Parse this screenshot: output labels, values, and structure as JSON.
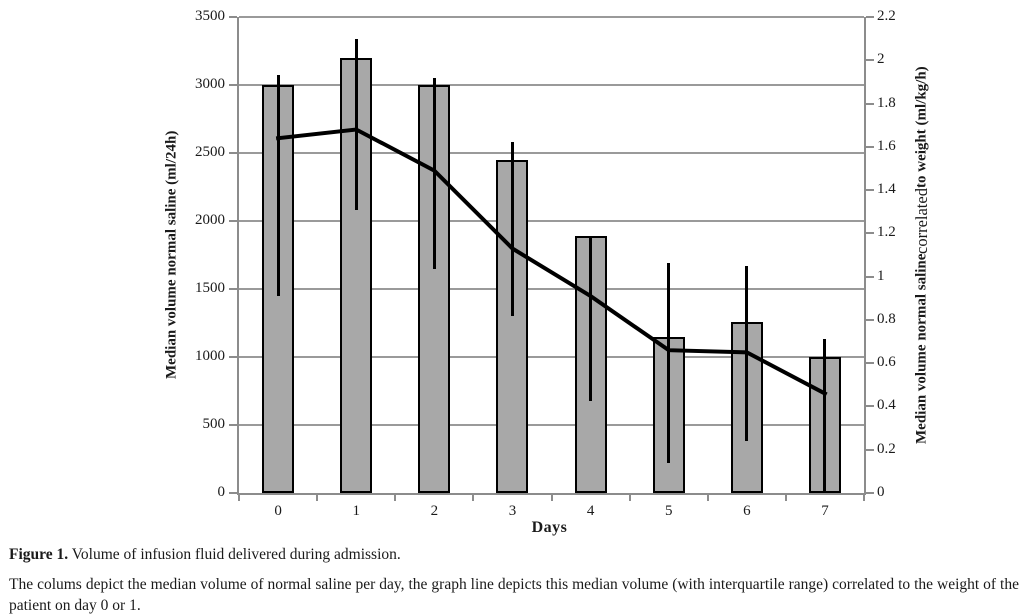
{
  "figure_caption": {
    "label": "Figure 1.",
    "title": " Volume of infusion fluid delivered during admission.",
    "body": "The colums depict the median volume of normal saline per day, the graph line depicts this median volume (with interquartile range) correlated to the weight of the patient on day 0 or 1."
  },
  "chart_data": {
    "type": "bar",
    "overlay_type": "line",
    "categories": [
      "0",
      "1",
      "2",
      "3",
      "4",
      "5",
      "6",
      "7"
    ],
    "xlabel": "Days",
    "legend_position": "none",
    "grid": true,
    "gridline_color": "#9a9a9a",
    "axis_color": "#8c8c8c",
    "left_axis": {
      "label": "Median volume normal saline (ml/24h)",
      "min": 0,
      "max": 3500,
      "step": 500,
      "tick_labels": [
        "0",
        "500",
        "1000",
        "1500",
        "2000",
        "2500",
        "3000",
        "3500"
      ]
    },
    "right_axis": {
      "label_part1": "Median volume normal saline ",
      "label_part2": "correlated",
      "label_part3": " to weight (ml/kg/h)",
      "min": 0,
      "max": 2.2,
      "step": 0.2,
      "tick_labels": [
        "0",
        "0.2",
        "0.4",
        "0.6",
        "0.8",
        "1",
        "1.2",
        "1.4",
        "1.6",
        "1.8",
        "2",
        "2.2"
      ]
    },
    "series": [
      {
        "name": "Median volume normal saline per day (columns)",
        "type": "bar",
        "axis": "left",
        "values": [
          3000,
          3200,
          3000,
          2450,
          1890,
          1150,
          1260,
          1000
        ],
        "error_low": [
          1450,
          2080,
          1650,
          1300,
          680,
          220,
          380,
          0
        ],
        "error_high": [
          3070,
          3340,
          3050,
          2580,
          1880,
          1690,
          1670,
          1130
        ],
        "fill": "#a8a8a8",
        "stroke": "#000000"
      },
      {
        "name": "Median volume correlated to weight (line)",
        "type": "line",
        "axis": "right",
        "values": [
          1.64,
          1.68,
          1.49,
          1.13,
          0.91,
          0.66,
          0.65,
          0.46
        ],
        "color": "#000000",
        "width": 4
      }
    ]
  }
}
